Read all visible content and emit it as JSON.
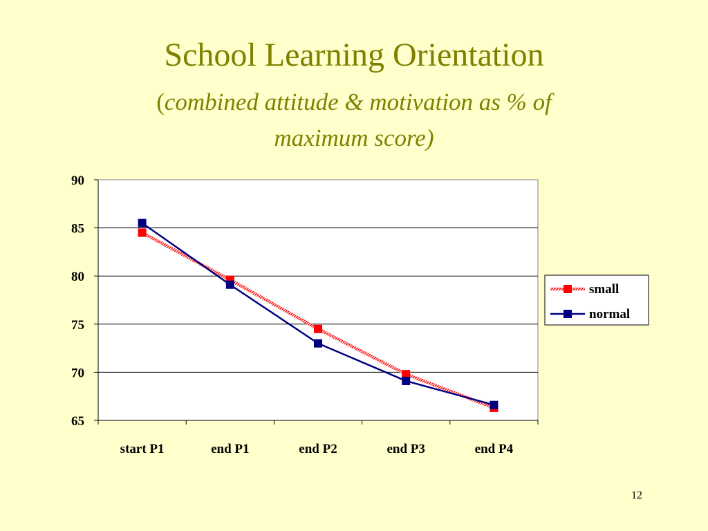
{
  "slide": {
    "title": "School Learning Orientation",
    "subtitle_open": "(",
    "subtitle_text": "combined attitude & motivation as % of maximum score)",
    "page_number": "12"
  },
  "colors": {
    "background": "#FFFFCC",
    "title": "#808000",
    "small": "#FF0000",
    "normal": "#000080"
  },
  "chart_data": {
    "type": "line",
    "categories": [
      "start P1",
      "end P1",
      "end P2",
      "end P3",
      "end P4"
    ],
    "series": [
      {
        "name": "small",
        "values": [
          84.5,
          79.6,
          74.5,
          69.8,
          66.3
        ],
        "color": "#FF0000",
        "marker": "square",
        "line_style": "hatched"
      },
      {
        "name": "normal",
        "values": [
          85.5,
          79.1,
          73.0,
          69.1,
          66.6
        ],
        "color": "#000080",
        "marker": "square",
        "line_style": "solid"
      }
    ],
    "ylim": [
      65,
      90
    ],
    "y_ticks": [
      65,
      70,
      75,
      80,
      85,
      90
    ],
    "grid": true,
    "legend": "right",
    "xlabel": "",
    "ylabel": ""
  }
}
